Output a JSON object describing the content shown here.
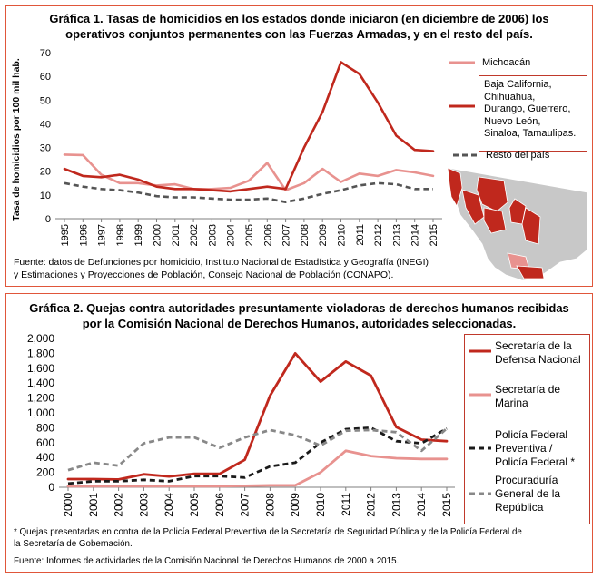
{
  "chart_data": [
    {
      "type": "line",
      "title": "Gráfica 1. Tasas de homicidios en los estados donde iniciaron (en diciembre de 2006) los operativos conjuntos permanentes con las Fuerzas Armadas, y en el resto del país.",
      "ylabel": "Tasa de homicidios por 100 mil hab.",
      "xlabel": "",
      "ylim": [
        0,
        70
      ],
      "yticks": [
        0,
        10,
        20,
        30,
        40,
        50,
        60,
        70
      ],
      "categories": [
        "1995",
        "1996",
        "1997",
        "1998",
        "1999",
        "2000",
        "2001",
        "2002",
        "2003",
        "2004",
        "2005",
        "2006",
        "2007",
        "2008",
        "2009",
        "2010",
        "2011",
        "2012",
        "2013",
        "2014",
        "2015"
      ],
      "series": [
        {
          "name": "Michoacán",
          "color": "#e8928f",
          "style": "solid",
          "values": [
            27,
            26.8,
            18.5,
            15,
            15,
            14,
            14.5,
            12.5,
            12.5,
            13,
            16,
            23.5,
            12,
            15,
            21,
            15.5,
            19,
            18,
            20.5,
            19.5,
            18
          ]
        },
        {
          "name": "Baja California, Chihuahua, Durango, Guerrero, Nuevo León, Sinaloa, Tamaulipas.",
          "color": "#c0281d",
          "style": "solid",
          "values": [
            21,
            18,
            17.5,
            18.5,
            16.5,
            13.5,
            12.5,
            12.5,
            12,
            11.5,
            12.5,
            13.5,
            12.5,
            30,
            45,
            66,
            61,
            49,
            35,
            29,
            28.5
          ]
        },
        {
          "name": "Resto del país",
          "color": "#555555",
          "style": "dashed",
          "values": [
            15,
            13.5,
            12.5,
            12,
            11,
            9.5,
            9,
            9,
            8.5,
            8,
            8,
            8.5,
            7,
            8.5,
            10.5,
            12,
            14,
            15,
            14.5,
            12.5,
            12.5
          ]
        }
      ],
      "source": "Fuente: datos de Defunciones por homicidio, Instituto Nacional de Estadística y Geografía (INEGI) y Estimaciones y Proyecciones de Población, Consejo Nacional de Población (CONAPO)."
    },
    {
      "type": "line",
      "title": "Gráfica 2. Quejas contra autoridades presuntamente violadoras de derechos humanos recibidas por la Comisión Nacional de Derechos Humanos, autoridades seleccionadas.",
      "ylim": [
        0,
        2000
      ],
      "yticks": [
        "0",
        "200",
        "400",
        "600",
        "800",
        "1,000",
        "1,200",
        "1,400",
        "1,600",
        "1,800",
        "2,000"
      ],
      "categories": [
        "2000",
        "2001",
        "2002",
        "2003",
        "2004",
        "2005",
        "2006",
        "2007",
        "2008",
        "2009",
        "2010",
        "2011",
        "2012",
        "2013",
        "2014",
        "2015"
      ],
      "series": [
        {
          "name": "Secretaría de la Defensa Nacional",
          "color": "#c0281d",
          "style": "solid",
          "values": [
            110,
            110,
            105,
            175,
            145,
            180,
            180,
            370,
            1230,
            1800,
            1420,
            1690,
            1500,
            810,
            640,
            620
          ]
        },
        {
          "name": "Secretaría de Marina",
          "color": "#e8928f",
          "style": "solid",
          "values": [
            15,
            15,
            15,
            15,
            15,
            15,
            15,
            20,
            25,
            25,
            200,
            490,
            420,
            390,
            380,
            380
          ]
        },
        {
          "name": "Policía Federal Preventiva / Policía Federal *",
          "color": "#1a1a1a",
          "style": "dashed",
          "values": [
            50,
            80,
            80,
            100,
            80,
            150,
            150,
            130,
            280,
            330,
            600,
            780,
            800,
            620,
            590,
            790
          ]
        },
        {
          "name": "Procuraduría General de la República",
          "color": "#888888",
          "style": "dashed",
          "values": [
            230,
            330,
            290,
            590,
            670,
            670,
            530,
            670,
            770,
            700,
            560,
            760,
            770,
            740,
            490,
            790
          ]
        }
      ],
      "footnote": "* Quejas presentadas en contra de la Policía Federal Preventiva de la Secretaría de Seguridad Pública y de la Policía Federal de la Secretaría de Gobernación.",
      "source": "Fuente: Informes de actividades de la Comisión Nacional de Derechos Humanos de 2000 a 2015."
    }
  ],
  "legend1": {
    "michoacan": "Michoacán",
    "states_lines": [
      "Baja California,",
      "Chihuahua,",
      "Durango, Guerrero,",
      "Nuevo León,",
      "Sinaloa, Tamaulipas."
    ],
    "resto": "Resto del país"
  },
  "legend2": {
    "sedena": [
      "Secretaría de la",
      "Defensa Nacional"
    ],
    "semar": [
      "Secretaría de",
      "Marina"
    ],
    "pf": [
      "Policía Federal",
      "Preventiva /",
      "Policía Federal *"
    ],
    "pgr": [
      "Procuraduría",
      "General de la",
      "República"
    ]
  },
  "title1_lines": [
    "Gráfica 1. Tasas de homicidios en los estados donde iniciaron (en diciembre de 2006) los",
    "operativos conjuntos permanentes con las Fuerzas Armadas, y en el resto del país."
  ],
  "source1_lines": [
    "Fuente: datos de Defunciones por homicidio, Instituto Nacional de Estadística y Geografía (INEGI)",
    "y Estimaciones y Proyecciones de Población, Consejo Nacional de Población (CONAPO)."
  ],
  "title2_lines": [
    "Gráfica 2. Quejas contra autoridades presuntamente violadoras de derechos humanos recibidas",
    "por la Comisión Nacional de Derechos Humanos, autoridades seleccionadas."
  ],
  "footnote2_lines": [
    "* Quejas presentadas en contra de la Policía Federal Preventiva de la Secretaría de Seguridad Pública y de la Policía Federal de",
    "la Secretaría de Gobernación."
  ],
  "source2": "Fuente: Informes de actividades de la Comisión Nacional de Derechos Humanos de 2000 a 2015."
}
